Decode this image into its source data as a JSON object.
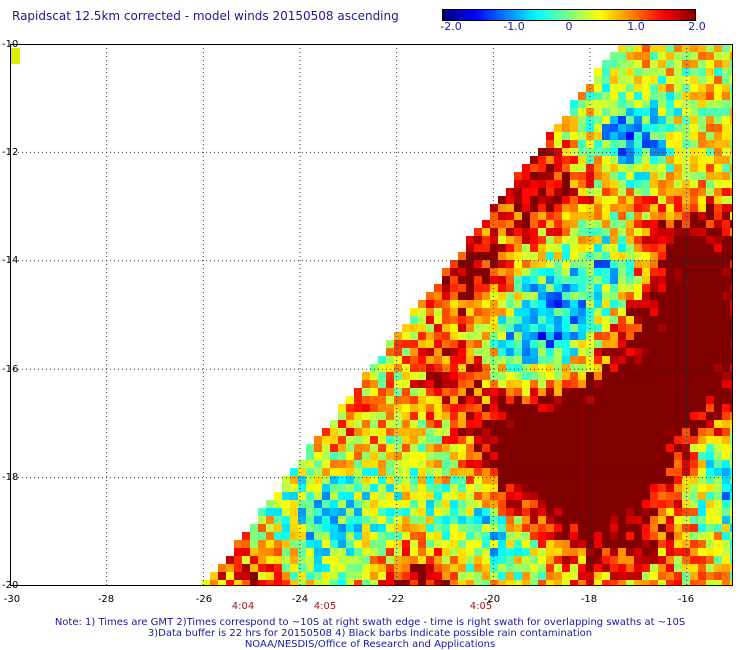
{
  "title": "Rapidscat 12.5km corrected - model winds 20150508 ascending",
  "colorbar": {
    "ticks": [
      "-2.0",
      "-1.0",
      "0",
      "1.0",
      "2.0"
    ],
    "range": [
      -2.0,
      2.0
    ],
    "colors": [
      "#000080",
      "#0000ff",
      "#0080ff",
      "#00ffff",
      "#80ff80",
      "#ffff00",
      "#ff8000",
      "#ff0000",
      "#800000"
    ]
  },
  "map": {
    "lon_range": [
      -30,
      -15
    ],
    "lat_range": [
      -20,
      -10
    ],
    "lat_labels": [
      "-10",
      "-12",
      "-14",
      "-16",
      "-18",
      "-20"
    ],
    "lon_labels": [
      "-30",
      "-28",
      "-26",
      "-24",
      "-22",
      "-20",
      "-18",
      "-16"
    ],
    "grid": "dotted",
    "time_labels": [
      "4:04",
      "4:05",
      "4:05"
    ]
  },
  "notes": {
    "line1": "Note: 1) Times are GMT 2)Times correspond to ~10S at right swath edge - time is right swath for overlapping swaths at ~10S",
    "line2": "3)Data buffer is 22 hrs for 20150508 4) Black barbs indicate possible rain contamination",
    "line3": "NOAA/NESDIS/Office of Research and Applications"
  }
}
